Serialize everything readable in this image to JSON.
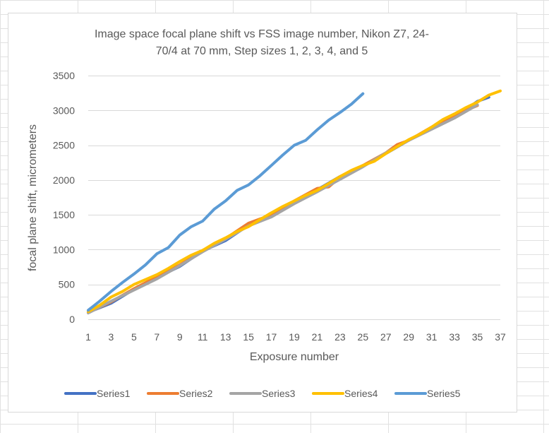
{
  "chart_data": {
    "type": "line",
    "title": "Image space focal plane shift vs FSS image number, Nikon Z7, 24-70/4 at 70 mm, Step sizes 1, 2, 3, 4, and 5",
    "title_lines": [
      "Image space focal plane shift vs FSS image number, Nikon Z7, 24-",
      "70/4 at 70 mm, Step sizes 1, 2, 3, 4, and 5"
    ],
    "xlabel": "Exposure number",
    "ylabel": "focal plane shift, micrometers",
    "xlim": [
      1,
      37
    ],
    "ylim": [
      0,
      3500
    ],
    "x_ticks": [
      1,
      3,
      5,
      7,
      9,
      11,
      13,
      15,
      17,
      19,
      21,
      23,
      25,
      27,
      29,
      31,
      33,
      35,
      37
    ],
    "y_ticks": [
      0,
      500,
      1000,
      1500,
      2000,
      2500,
      3000,
      3500
    ],
    "grid": "horizontal",
    "legend_position": "bottom",
    "series": [
      {
        "name": "Series1",
        "color": "#4472c4",
        "x": [
          1,
          3,
          5,
          7,
          9,
          11,
          13,
          15,
          17,
          19,
          21,
          23,
          25,
          27,
          29,
          31,
          33,
          35,
          36
        ],
        "values": [
          100,
          230,
          430,
          600,
          760,
          980,
          1130,
          1350,
          1480,
          1680,
          1860,
          2050,
          2200,
          2380,
          2570,
          2740,
          2900,
          3130,
          3190
        ]
      },
      {
        "name": "Series2",
        "color": "#ed7d31",
        "x": [
          1,
          3,
          5,
          7,
          9,
          11,
          13,
          15,
          17,
          19,
          21,
          22,
          23,
          25,
          27,
          28,
          29,
          31,
          33,
          35
        ],
        "values": [
          95,
          250,
          440,
          610,
          780,
          990,
          1160,
          1380,
          1500,
          1700,
          1880,
          1900,
          2040,
          2210,
          2390,
          2510,
          2570,
          2760,
          2930,
          3070
        ]
      },
      {
        "name": "Series3",
        "color": "#a5a5a5",
        "x": [
          1,
          3,
          5,
          7,
          9,
          11,
          13,
          15,
          17,
          19,
          21,
          23,
          25,
          27,
          29,
          31,
          33,
          35
        ],
        "values": [
          90,
          260,
          420,
          580,
          770,
          970,
          1150,
          1340,
          1470,
          1660,
          1830,
          2010,
          2190,
          2390,
          2570,
          2730,
          2890,
          3080
        ]
      },
      {
        "name": "Series4",
        "color": "#ffc000",
        "x": [
          1,
          2,
          3,
          4,
          5,
          6,
          7,
          8,
          9,
          10,
          11,
          12,
          13,
          14,
          15,
          16,
          17,
          18,
          19,
          20,
          21,
          22,
          23,
          24,
          25,
          26,
          27,
          28,
          29,
          30,
          31,
          32,
          33,
          34,
          35,
          36,
          37
        ],
        "values": [
          110,
          200,
          320,
          400,
          500,
          570,
          640,
          730,
          830,
          920,
          990,
          1090,
          1170,
          1260,
          1330,
          1430,
          1530,
          1620,
          1700,
          1780,
          1850,
          1950,
          2050,
          2140,
          2210,
          2270,
          2380,
          2480,
          2580,
          2660,
          2760,
          2870,
          2950,
          3040,
          3120,
          3220,
          3280
        ]
      },
      {
        "name": "Series5",
        "color": "#5b9bd5",
        "x": [
          1,
          2,
          3,
          4,
          5,
          6,
          7,
          8,
          9,
          10,
          11,
          12,
          13,
          14,
          15,
          16,
          17,
          18,
          19,
          20,
          21,
          22,
          23,
          24,
          25
        ],
        "values": [
          130,
          260,
          400,
          530,
          650,
          780,
          940,
          1030,
          1210,
          1330,
          1410,
          1580,
          1700,
          1850,
          1930,
          2060,
          2210,
          2360,
          2500,
          2570,
          2720,
          2860,
          2970,
          3090,
          3240
        ]
      }
    ]
  }
}
